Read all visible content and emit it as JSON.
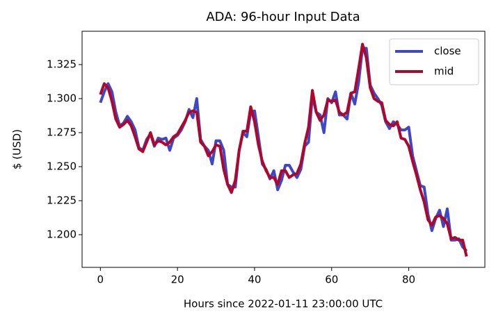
{
  "chart_data": {
    "type": "line",
    "title": "ADA: 96-hour Input Data",
    "x_label": "Hours since 2022-01-11 23:00:00 UTC",
    "y_label": "$ (USD)",
    "x": [
      0,
      1,
      2,
      3,
      4,
      5,
      6,
      7,
      8,
      9,
      10,
      11,
      12,
      13,
      14,
      15,
      16,
      17,
      18,
      19,
      20,
      21,
      22,
      23,
      24,
      25,
      26,
      27,
      28,
      29,
      30,
      31,
      32,
      33,
      34,
      35,
      36,
      37,
      38,
      39,
      40,
      41,
      42,
      43,
      44,
      45,
      46,
      47,
      48,
      49,
      50,
      51,
      52,
      53,
      54,
      55,
      56,
      57,
      58,
      59,
      60,
      61,
      62,
      63,
      64,
      65,
      66,
      67,
      68,
      69,
      70,
      71,
      72,
      73,
      74,
      75,
      76,
      77,
      78,
      79,
      80,
      81,
      82,
      83,
      84,
      85,
      86,
      87,
      88,
      89,
      90,
      91,
      92,
      93,
      94,
      95
    ],
    "series": [
      {
        "name": "close",
        "color": "#3f48c4",
        "values": [
          1.297,
          1.305,
          1.311,
          1.305,
          1.29,
          1.28,
          1.282,
          1.287,
          1.283,
          1.277,
          1.264,
          1.262,
          1.27,
          1.274,
          1.265,
          1.271,
          1.27,
          1.271,
          1.262,
          1.271,
          1.273,
          1.277,
          1.283,
          1.292,
          1.286,
          1.3,
          1.27,
          1.265,
          1.262,
          1.252,
          1.269,
          1.269,
          1.262,
          1.237,
          1.235,
          1.235,
          1.262,
          1.275,
          1.272,
          1.29,
          1.291,
          1.272,
          1.252,
          1.248,
          1.241,
          1.247,
          1.233,
          1.24,
          1.251,
          1.251,
          1.246,
          1.242,
          1.248,
          1.265,
          1.268,
          1.302,
          1.29,
          1.288,
          1.275,
          1.3,
          1.297,
          1.305,
          1.288,
          1.288,
          1.285,
          1.304,
          1.296,
          1.312,
          1.337,
          1.337,
          1.31,
          1.304,
          1.3,
          1.295,
          1.283,
          1.278,
          1.283,
          1.281,
          1.277,
          1.277,
          1.279,
          1.258,
          1.247,
          1.236,
          1.235,
          1.215,
          1.203,
          1.212,
          1.218,
          1.206,
          1.219,
          1.196,
          1.196,
          1.197,
          1.191,
          1.188
        ]
      },
      {
        "name": "mid",
        "color": "#b0062c",
        "values": [
          1.303,
          1.311,
          1.308,
          1.298,
          1.285,
          1.279,
          1.281,
          1.284,
          1.28,
          1.272,
          1.263,
          1.261,
          1.268,
          1.275,
          1.266,
          1.269,
          1.268,
          1.266,
          1.268,
          1.272,
          1.274,
          1.279,
          1.284,
          1.29,
          1.291,
          1.29,
          1.268,
          1.265,
          1.258,
          1.261,
          1.266,
          1.265,
          1.248,
          1.237,
          1.231,
          1.24,
          1.262,
          1.276,
          1.276,
          1.294,
          1.283,
          1.266,
          1.254,
          1.247,
          1.242,
          1.242,
          1.237,
          1.247,
          1.247,
          1.242,
          1.244,
          1.245,
          1.252,
          1.267,
          1.279,
          1.306,
          1.29,
          1.284,
          1.288,
          1.299,
          1.298,
          1.299,
          1.29,
          1.288,
          1.29,
          1.304,
          1.305,
          1.322,
          1.34,
          1.33,
          1.308,
          1.3,
          1.298,
          1.297,
          1.284,
          1.281,
          1.28,
          1.283,
          1.271,
          1.27,
          1.265,
          1.254,
          1.244,
          1.233,
          1.224,
          1.211,
          1.207,
          1.213,
          1.214,
          1.212,
          1.208,
          1.197,
          1.198,
          1.196,
          1.196,
          1.184
        ]
      }
    ],
    "xlim": [
      -4.75,
      99.75
    ],
    "ylim": [
      1.176,
      1.3495
    ],
    "xticks": [
      0,
      20,
      40,
      60,
      80
    ],
    "yticks": [
      {
        "value": 1.2,
        "label": "1.200"
      },
      1.225,
      {
        "value": 1.25,
        "label": "1.250"
      },
      1.275,
      {
        "value": 1.3,
        "label": "1.300"
      },
      1.325
    ],
    "legend": "upper right"
  }
}
